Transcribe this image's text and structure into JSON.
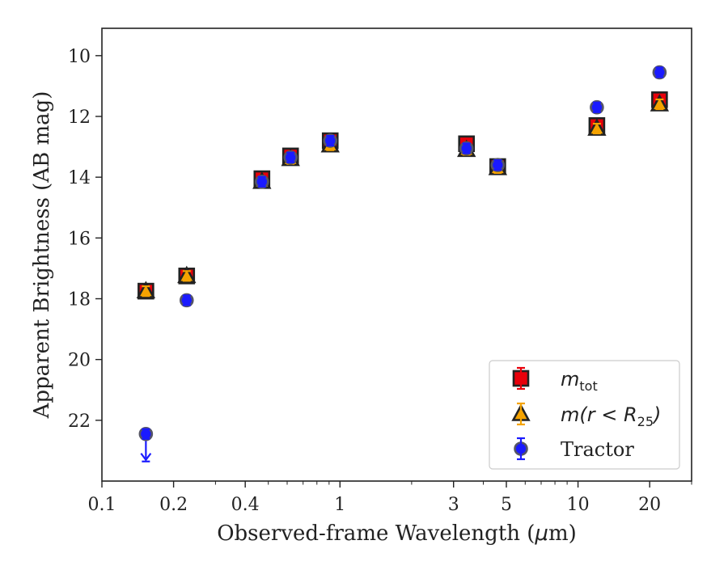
{
  "chart_data": {
    "type": "scatter",
    "xlabel": "Observed-frame Wavelength (μm)",
    "xlabel_parts": [
      "Observed-frame Wavelength (",
      "μ",
      "m)"
    ],
    "ylabel": "Apparent Brightness (AB mag)",
    "xscale": "log",
    "xlim": [
      0.1,
      30
    ],
    "ylim": [
      24.0,
      9.1
    ],
    "y_inverted": true,
    "xticks": [
      {
        "value": 0.1,
        "label": "0.1"
      },
      {
        "value": 0.2,
        "label": "0.2"
      },
      {
        "value": 0.4,
        "label": "0.4"
      },
      {
        "value": 1,
        "label": "1"
      },
      {
        "value": 3,
        "label": "3"
      },
      {
        "value": 5,
        "label": "5"
      },
      {
        "value": 10,
        "label": "10"
      },
      {
        "value": 20,
        "label": "20"
      }
    ],
    "xminor": [
      0.3,
      0.5,
      0.6,
      0.7,
      0.8,
      0.9,
      2,
      4,
      6,
      7,
      8,
      9,
      30
    ],
    "yticks": [
      {
        "value": 10,
        "label": "10"
      },
      {
        "value": 12,
        "label": "12"
      },
      {
        "value": 14,
        "label": "14"
      },
      {
        "value": 16,
        "label": "16"
      },
      {
        "value": 18,
        "label": "18"
      },
      {
        "value": 20,
        "label": "20"
      },
      {
        "value": 22,
        "label": "22"
      }
    ],
    "grid": false,
    "legend_position": "lower-right",
    "series": [
      {
        "key": "mtot",
        "name": "m_tot",
        "legend_main": "m",
        "legend_sub": "tot",
        "marker": "square",
        "face_color": "#e8000b",
        "edge_color": "#222222",
        "err_color": "#e8000b",
        "x": [
          0.153,
          0.227,
          0.47,
          0.62,
          0.91,
          3.4,
          4.6,
          12.0,
          22.0
        ],
        "y": [
          17.75,
          17.25,
          14.05,
          13.3,
          12.8,
          12.9,
          13.65,
          12.3,
          11.45
        ],
        "upper_limit": [
          false,
          false,
          false,
          false,
          false,
          false,
          false,
          false,
          false
        ]
      },
      {
        "key": "mr25",
        "name": "m(r < R25)",
        "legend_main": "m(r < R",
        "legend_sub": "25",
        "legend_tail": ")",
        "marker": "triangle",
        "face_color": "#f5a300",
        "edge_color": "#222222",
        "err_color": "#f5a300",
        "x": [
          0.153,
          0.227,
          0.47,
          0.62,
          0.91,
          3.4,
          4.6,
          12.0,
          22.0
        ],
        "y": [
          17.75,
          17.25,
          14.15,
          13.4,
          12.95,
          13.1,
          13.7,
          12.4,
          11.6
        ],
        "upper_limit": [
          false,
          false,
          false,
          false,
          false,
          false,
          false,
          false,
          false
        ]
      },
      {
        "key": "tractor",
        "name": "Tractor",
        "legend_main": "Tractor",
        "marker": "circle",
        "face_color": "#1a1aff",
        "edge_color": "#555566",
        "err_color": "#1a1aff",
        "x": [
          0.153,
          0.227,
          0.47,
          0.62,
          0.91,
          3.4,
          4.6,
          12.0,
          22.0
        ],
        "y": [
          22.45,
          18.05,
          14.15,
          13.35,
          12.8,
          13.05,
          13.6,
          11.7,
          10.55
        ],
        "upper_limit": [
          true,
          false,
          false,
          false,
          false,
          false,
          false,
          false,
          false
        ]
      }
    ]
  }
}
